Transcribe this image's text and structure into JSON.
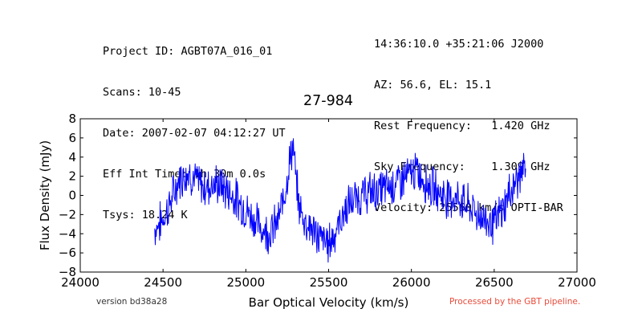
{
  "header": {
    "left": [
      "Project ID: AGBT07A_016_01",
      "Scans: 10-45",
      "Date: 2007-02-07 04:12:27 UT",
      "Eff Int Time: 1h 30m 0.0s",
      "Tsys: 18.24 K"
    ],
    "right": [
      "14:36:10.0 +35:21:06 J2000",
      "AZ: 56.6, EL: 15.1",
      "Rest Frequency:   1.420 GHz",
      "Sky Frequency:    1.309 GHz",
      "Velocity: 25560 km/s OPTI-BAR"
    ]
  },
  "footer": {
    "version": "version bd38a28",
    "processed": "Processed by the GBT pipeline."
  },
  "colors": {
    "line": "#0000ff",
    "processed_text": "#e84b3a",
    "axes": "#000000"
  },
  "chart_data": {
    "type": "line",
    "title": "27-984",
    "xlabel": "Bar Optical Velocity (km/s)",
    "ylabel": "Flux Density (mJy)",
    "xlim": [
      24000,
      27000
    ],
    "ylim": [
      -8,
      8
    ],
    "xticks": [
      24000,
      24500,
      25000,
      25500,
      26000,
      26500,
      27000
    ],
    "yticks": [
      -8,
      -6,
      -4,
      -2,
      0,
      2,
      4,
      6,
      8
    ],
    "grid": false,
    "legend": "none",
    "series": [
      {
        "x": [
          24450,
          24500,
          24550,
          24600,
          24650,
          24700,
          24750,
          24800,
          24850,
          24900,
          24950,
          25000,
          25050,
          25100,
          25150,
          25200,
          25230,
          25260,
          25280,
          25290,
          25300,
          25320,
          25350,
          25400,
          25450,
          25500,
          25550,
          25600,
          25650,
          25700,
          25750,
          25800,
          25850,
          25900,
          25950,
          26000,
          26020,
          26050,
          26100,
          26150,
          26200,
          26250,
          26300,
          26350,
          26400,
          26450,
          26500,
          26550,
          26600,
          26650,
          26690
        ],
        "y": [
          -3.5,
          -2.5,
          -0.5,
          1.8,
          2.5,
          1.5,
          0.8,
          1.2,
          1.0,
          0.3,
          -0.5,
          -1.5,
          -2.5,
          -3.5,
          -3.8,
          -2.5,
          0.0,
          3.0,
          5.0,
          4.5,
          2.0,
          -1.0,
          -2.5,
          -3.5,
          -4.5,
          -5.0,
          -3.5,
          -1.5,
          -0.5,
          0.0,
          0.3,
          0.5,
          0.8,
          1.2,
          1.8,
          2.2,
          2.5,
          2.2,
          1.2,
          0.5,
          0.0,
          -0.2,
          -0.5,
          -1.2,
          -2.0,
          -2.5,
          -3.0,
          -1.5,
          0.5,
          2.0,
          2.8
        ]
      }
    ]
  }
}
